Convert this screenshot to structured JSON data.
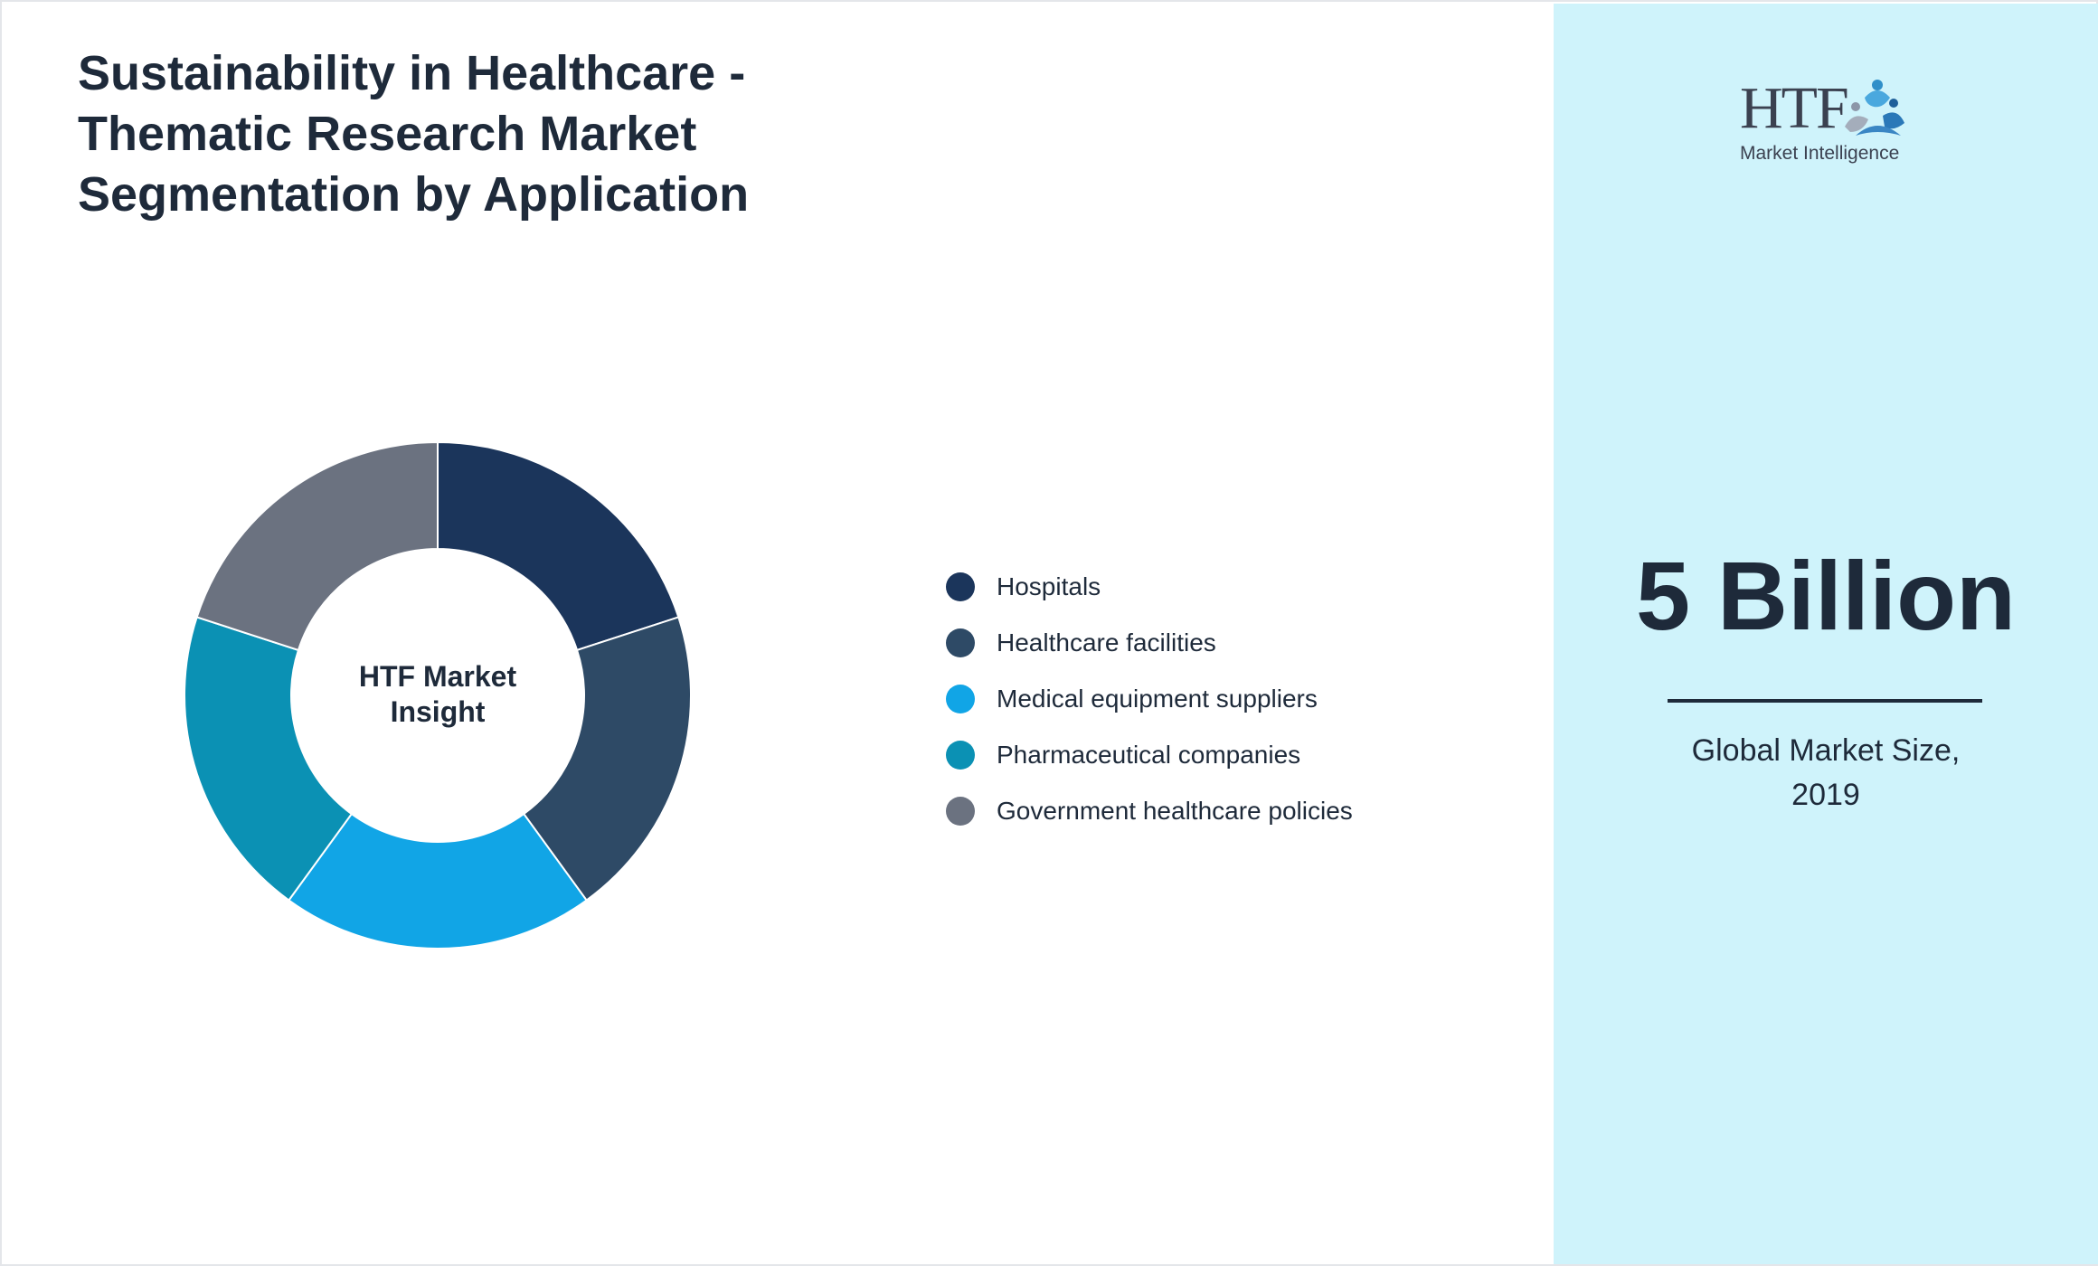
{
  "title_lines": [
    "Sustainability in Healthcare -",
    "Thematic Research Market",
    "Segmentation by Application"
  ],
  "chart_data": {
    "type": "pie",
    "donut": true,
    "center_label_lines": [
      "HTF Market",
      "Insight"
    ],
    "categories": [
      "Hospitals",
      "Healthcare facilities",
      "Medical equipment suppliers",
      "Pharmaceutical companies",
      "Government healthcare policies"
    ],
    "values": [
      20,
      20,
      20,
      20,
      20
    ],
    "colors": [
      "#1b355b",
      "#2e4a66",
      "#11a5e6",
      "#0b91b4",
      "#6b7280"
    ],
    "legend_position": "right"
  },
  "side_panel": {
    "logo": {
      "wordmark": "HTF",
      "subtitle": "Market Intelligence"
    },
    "value": "5 Billion",
    "caption_lines": [
      "Global Market Size,",
      "2019"
    ]
  }
}
